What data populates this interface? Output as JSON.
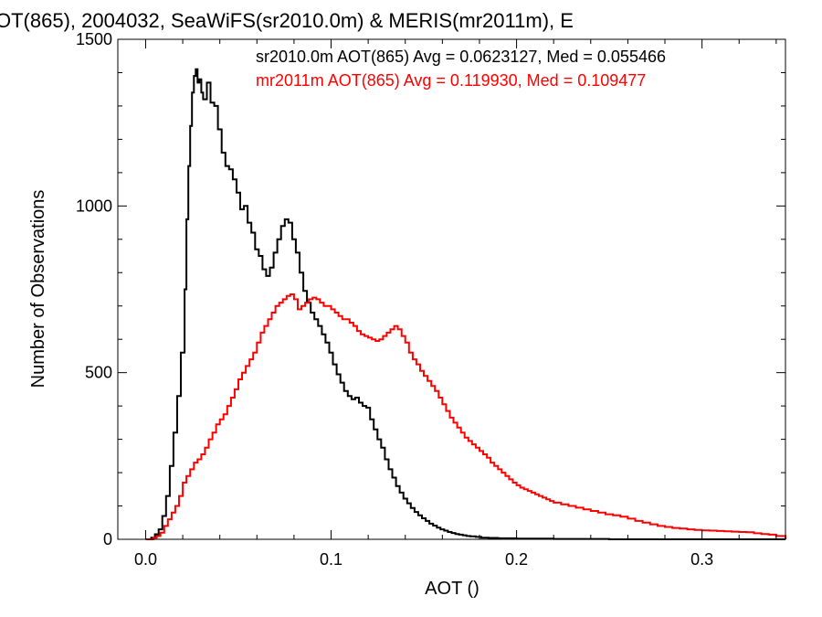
{
  "chart_data": {
    "type": "line",
    "title": "OT(865), 2004032, SeaWiFS(sr2010.0m) & MERIS(mr2011m), E",
    "xlabel": "AOT ()",
    "ylabel": "Number of Observations",
    "xlim": [
      -0.015,
      0.345
    ],
    "ylim": [
      0,
      1500
    ],
    "x_ticks": [
      0.0,
      0.1,
      0.2,
      0.3
    ],
    "x_tick_labels": [
      "0.0",
      "0.1",
      "0.2",
      "0.3"
    ],
    "y_ticks": [
      0,
      500,
      1000,
      1500
    ],
    "y_tick_labels": [
      "0",
      "500",
      "1000",
      "1500"
    ],
    "step": true,
    "grid": false,
    "annotations": [
      {
        "text": "sr2010.0m AOT(865) Avg = 0.0623127, Med = 0.055466",
        "color": "#000000"
      },
      {
        "text": "mr2011m AOT(865) Avg = 0.119930, Med = 0.109477",
        "color": "#ff0000"
      }
    ],
    "series": [
      {
        "color": "#000000",
        "points": [
          [
            0.0,
            0
          ],
          [
            0.003,
            5
          ],
          [
            0.005,
            15
          ],
          [
            0.007,
            30
          ],
          [
            0.009,
            70
          ],
          [
            0.011,
            130
          ],
          [
            0.013,
            220
          ],
          [
            0.015,
            320
          ],
          [
            0.017,
            430
          ],
          [
            0.019,
            560
          ],
          [
            0.021,
            750
          ],
          [
            0.022,
            960
          ],
          [
            0.023,
            1120
          ],
          [
            0.024,
            1240
          ],
          [
            0.025,
            1340
          ],
          [
            0.026,
            1390
          ],
          [
            0.027,
            1410
          ],
          [
            0.028,
            1370
          ],
          [
            0.029,
            1380
          ],
          [
            0.03,
            1340
          ],
          [
            0.031,
            1320
          ],
          [
            0.033,
            1370
          ],
          [
            0.035,
            1310
          ],
          [
            0.037,
            1300
          ],
          [
            0.039,
            1230
          ],
          [
            0.041,
            1160
          ],
          [
            0.043,
            1120
          ],
          [
            0.045,
            1110
          ],
          [
            0.047,
            1080
          ],
          [
            0.049,
            1040
          ],
          [
            0.051,
            990
          ],
          [
            0.053,
            1000
          ],
          [
            0.055,
            950
          ],
          [
            0.057,
            920
          ],
          [
            0.059,
            870
          ],
          [
            0.061,
            850
          ],
          [
            0.063,
            810
          ],
          [
            0.065,
            790
          ],
          [
            0.067,
            815
          ],
          [
            0.069,
            860
          ],
          [
            0.071,
            900
          ],
          [
            0.073,
            940
          ],
          [
            0.075,
            960
          ],
          [
            0.077,
            950
          ],
          [
            0.079,
            900
          ],
          [
            0.081,
            860
          ],
          [
            0.083,
            800
          ],
          [
            0.085,
            745
          ],
          [
            0.087,
            710
          ],
          [
            0.089,
            680
          ],
          [
            0.091,
            660
          ],
          [
            0.093,
            640
          ],
          [
            0.095,
            615
          ],
          [
            0.097,
            590
          ],
          [
            0.099,
            560
          ],
          [
            0.101,
            525
          ],
          [
            0.103,
            495
          ],
          [
            0.105,
            470
          ],
          [
            0.107,
            445
          ],
          [
            0.109,
            430
          ],
          [
            0.111,
            420
          ],
          [
            0.113,
            425
          ],
          [
            0.115,
            410
          ],
          [
            0.117,
            400
          ],
          [
            0.119,
            395
          ],
          [
            0.121,
            360
          ],
          [
            0.123,
            330
          ],
          [
            0.125,
            300
          ],
          [
            0.127,
            275
          ],
          [
            0.129,
            240
          ],
          [
            0.131,
            210
          ],
          [
            0.133,
            185
          ],
          [
            0.135,
            160
          ],
          [
            0.137,
            140
          ],
          [
            0.139,
            122
          ],
          [
            0.141,
            108
          ],
          [
            0.143,
            94
          ],
          [
            0.145,
            82
          ],
          [
            0.147,
            72
          ],
          [
            0.149,
            63
          ],
          [
            0.151,
            55
          ],
          [
            0.153,
            47
          ],
          [
            0.155,
            41
          ],
          [
            0.157,
            35
          ],
          [
            0.159,
            30
          ],
          [
            0.161,
            26
          ],
          [
            0.163,
            22
          ],
          [
            0.165,
            19
          ],
          [
            0.167,
            16
          ],
          [
            0.169,
            14
          ],
          [
            0.171,
            12
          ],
          [
            0.173,
            10
          ],
          [
            0.175,
            9
          ],
          [
            0.178,
            7
          ],
          [
            0.181,
            5
          ],
          [
            0.185,
            4
          ],
          [
            0.19,
            3
          ],
          [
            0.2,
            2
          ],
          [
            0.22,
            1
          ],
          [
            0.25,
            0
          ],
          [
            0.345,
            0
          ]
        ]
      },
      {
        "color": "#ff0000",
        "points": [
          [
            0.0,
            0
          ],
          [
            0.004,
            5
          ],
          [
            0.006,
            10
          ],
          [
            0.008,
            20
          ],
          [
            0.01,
            40
          ],
          [
            0.012,
            60
          ],
          [
            0.014,
            80
          ],
          [
            0.016,
            100
          ],
          [
            0.018,
            130
          ],
          [
            0.02,
            170
          ],
          [
            0.022,
            190
          ],
          [
            0.024,
            210
          ],
          [
            0.026,
            230
          ],
          [
            0.028,
            240
          ],
          [
            0.03,
            255
          ],
          [
            0.032,
            275
          ],
          [
            0.034,
            300
          ],
          [
            0.036,
            320
          ],
          [
            0.038,
            345
          ],
          [
            0.04,
            360
          ],
          [
            0.042,
            375
          ],
          [
            0.044,
            400
          ],
          [
            0.046,
            425
          ],
          [
            0.048,
            450
          ],
          [
            0.05,
            480
          ],
          [
            0.052,
            500
          ],
          [
            0.054,
            520
          ],
          [
            0.056,
            540
          ],
          [
            0.058,
            560
          ],
          [
            0.06,
            590
          ],
          [
            0.062,
            620
          ],
          [
            0.064,
            640
          ],
          [
            0.066,
            660
          ],
          [
            0.068,
            680
          ],
          [
            0.07,
            700
          ],
          [
            0.072,
            710
          ],
          [
            0.074,
            720
          ],
          [
            0.076,
            730
          ],
          [
            0.078,
            735
          ],
          [
            0.08,
            720
          ],
          [
            0.082,
            690
          ],
          [
            0.084,
            700
          ],
          [
            0.086,
            710
          ],
          [
            0.088,
            720
          ],
          [
            0.09,
            725
          ],
          [
            0.092,
            720
          ],
          [
            0.094,
            710
          ],
          [
            0.096,
            700
          ],
          [
            0.098,
            700
          ],
          [
            0.1,
            690
          ],
          [
            0.102,
            680
          ],
          [
            0.104,
            670
          ],
          [
            0.106,
            660
          ],
          [
            0.108,
            660
          ],
          [
            0.11,
            650
          ],
          [
            0.112,
            640
          ],
          [
            0.114,
            625
          ],
          [
            0.116,
            615
          ],
          [
            0.118,
            610
          ],
          [
            0.12,
            605
          ],
          [
            0.122,
            600
          ],
          [
            0.124,
            595
          ],
          [
            0.126,
            600
          ],
          [
            0.128,
            610
          ],
          [
            0.13,
            620
          ],
          [
            0.132,
            630
          ],
          [
            0.134,
            640
          ],
          [
            0.136,
            630
          ],
          [
            0.138,
            610
          ],
          [
            0.14,
            590
          ],
          [
            0.142,
            560
          ],
          [
            0.144,
            540
          ],
          [
            0.146,
            525
          ],
          [
            0.148,
            505
          ],
          [
            0.15,
            490
          ],
          [
            0.152,
            475
          ],
          [
            0.154,
            460
          ],
          [
            0.156,
            445
          ],
          [
            0.158,
            425
          ],
          [
            0.16,
            405
          ],
          [
            0.162,
            385
          ],
          [
            0.164,
            365
          ],
          [
            0.166,
            350
          ],
          [
            0.168,
            335
          ],
          [
            0.17,
            320
          ],
          [
            0.172,
            305
          ],
          [
            0.174,
            295
          ],
          [
            0.176,
            285
          ],
          [
            0.178,
            275
          ],
          [
            0.18,
            265
          ],
          [
            0.182,
            255
          ],
          [
            0.184,
            245
          ],
          [
            0.186,
            230
          ],
          [
            0.188,
            220
          ],
          [
            0.19,
            210
          ],
          [
            0.192,
            200
          ],
          [
            0.194,
            190
          ],
          [
            0.196,
            180
          ],
          [
            0.198,
            170
          ],
          [
            0.2,
            162
          ],
          [
            0.202,
            155
          ],
          [
            0.204,
            150
          ],
          [
            0.206,
            145
          ],
          [
            0.208,
            140
          ],
          [
            0.21,
            135
          ],
          [
            0.212,
            130
          ],
          [
            0.214,
            125
          ],
          [
            0.216,
            120
          ],
          [
            0.218,
            115
          ],
          [
            0.22,
            110
          ],
          [
            0.224,
            105
          ],
          [
            0.228,
            100
          ],
          [
            0.232,
            95
          ],
          [
            0.236,
            90
          ],
          [
            0.24,
            85
          ],
          [
            0.244,
            80
          ],
          [
            0.248,
            75
          ],
          [
            0.252,
            72
          ],
          [
            0.256,
            68
          ],
          [
            0.26,
            62
          ],
          [
            0.264,
            55
          ],
          [
            0.268,
            50
          ],
          [
            0.272,
            45
          ],
          [
            0.276,
            40
          ],
          [
            0.28,
            37
          ],
          [
            0.284,
            34
          ],
          [
            0.288,
            32
          ],
          [
            0.292,
            30
          ],
          [
            0.296,
            28
          ],
          [
            0.3,
            27
          ],
          [
            0.304,
            26
          ],
          [
            0.308,
            25
          ],
          [
            0.312,
            24
          ],
          [
            0.316,
            23
          ],
          [
            0.32,
            22
          ],
          [
            0.324,
            21
          ],
          [
            0.328,
            18
          ],
          [
            0.332,
            16
          ],
          [
            0.336,
            14
          ],
          [
            0.34,
            10
          ],
          [
            0.345,
            0
          ]
        ]
      }
    ]
  }
}
